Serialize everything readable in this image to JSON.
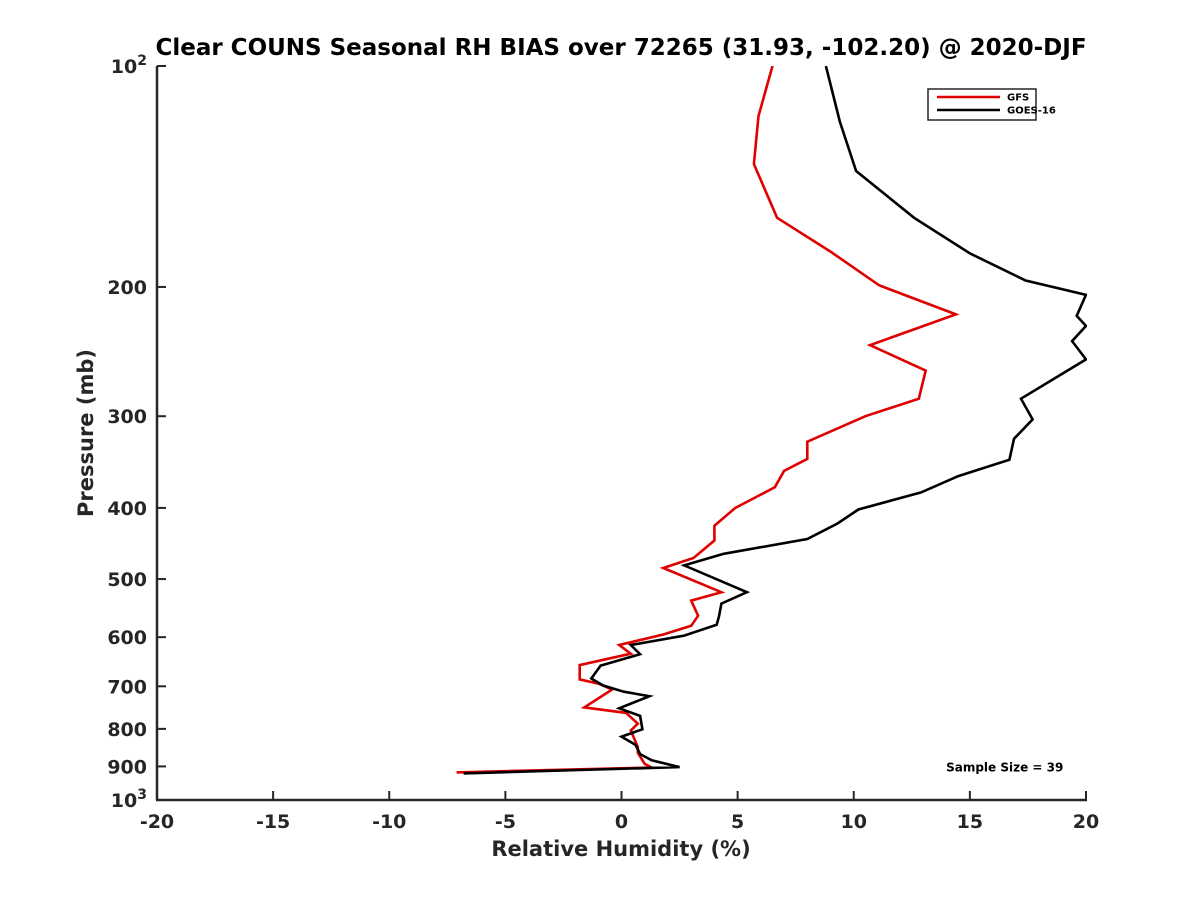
{
  "chart_data": {
    "type": "line",
    "title": "Clear COUNS Seasonal RH BIAS over 72265 (31.93, -102.20) @ 2020-DJF",
    "xlabel": "Relative Humidity (%)",
    "ylabel": "Pressure (mb)",
    "xlim": [
      -20,
      20
    ],
    "ylim": [
      100,
      1000
    ],
    "yscale": "log",
    "y_reversed": false,
    "grid": false,
    "legend_position": "top-right",
    "x_ticks": [
      -20,
      -15,
      -10,
      -5,
      0,
      5,
      10,
      15,
      20
    ],
    "x_tick_labels": [
      "-20",
      "-15",
      "-10",
      "-5",
      "0",
      "5",
      "10",
      "15",
      "20"
    ],
    "y_ticks": [
      100,
      200,
      300,
      400,
      500,
      600,
      700,
      800,
      900,
      1000
    ],
    "y_tick_labels": [
      {
        "base": "10",
        "exp": "2"
      },
      {
        "base": "200",
        "exp": ""
      },
      {
        "base": "300",
        "exp": ""
      },
      {
        "base": "400",
        "exp": ""
      },
      {
        "base": "500",
        "exp": ""
      },
      {
        "base": "600",
        "exp": ""
      },
      {
        "base": "700",
        "exp": ""
      },
      {
        "base": "800",
        "exp": ""
      },
      {
        "base": "900",
        "exp": ""
      },
      {
        "base": "10",
        "exp": "3"
      }
    ],
    "series": [
      {
        "name": "GFS",
        "color": "#e00000",
        "x": [
          6.5,
          5.9,
          5.7,
          6.7,
          9.0,
          11.1,
          14.4,
          10.7,
          13.1,
          12.8,
          10.5,
          8.0,
          8.0,
          7.0,
          6.6,
          4.9,
          4.0,
          4.0,
          3.1,
          1.8,
          4.3,
          3.0,
          3.3,
          3.0,
          1.8,
          -0.1,
          0.4,
          -1.8,
          -1.8,
          -1.0,
          -0.4,
          -1.6,
          0.2,
          0.7,
          0.4,
          0.7,
          0.7,
          1.0,
          1.3,
          -7.1
        ],
        "y": [
          100,
          117,
          136,
          161,
          179,
          199,
          218,
          240,
          260,
          284,
          300,
          325,
          343,
          356,
          375,
          400,
          423,
          443,
          468,
          483,
          521,
          535,
          561,
          579,
          595,
          615,
          632,
          655,
          685,
          694,
          707,
          748,
          761,
          787,
          804,
          847,
          862,
          893,
          903,
          917
        ]
      },
      {
        "name": "GOES-16",
        "color": "#000000",
        "x": [
          8.8,
          9.4,
          10.1,
          12.6,
          15.0,
          17.4,
          20.0,
          19.6,
          20.0,
          19.4,
          20.0,
          17.2,
          17.7,
          16.9,
          16.7,
          14.5,
          12.9,
          10.2,
          9.3,
          8.0,
          4.4,
          2.7,
          5.4,
          4.3,
          4.2,
          4.1,
          2.7,
          0.4,
          0.8,
          -0.9,
          -1.3,
          -0.8,
          0.1,
          1.2,
          -0.1,
          0.8,
          0.9,
          0.0,
          0.6,
          0.7,
          0.8,
          1.3,
          2.5,
          -6.8
        ],
        "y": [
          100,
          119,
          139,
          161,
          180,
          196,
          205,
          219,
          226,
          237,
          251,
          284,
          303,
          322,
          344,
          362,
          381,
          402,
          420,
          441,
          462,
          479,
          521,
          540,
          562,
          577,
          597,
          615,
          633,
          656,
          683,
          698,
          712,
          722,
          750,
          768,
          801,
          820,
          841,
          853,
          866,
          883,
          902,
          920
        ]
      }
    ],
    "annotations": [
      {
        "text": "Sample Size = 39",
        "x": 16.5,
        "y": 900
      }
    ]
  }
}
